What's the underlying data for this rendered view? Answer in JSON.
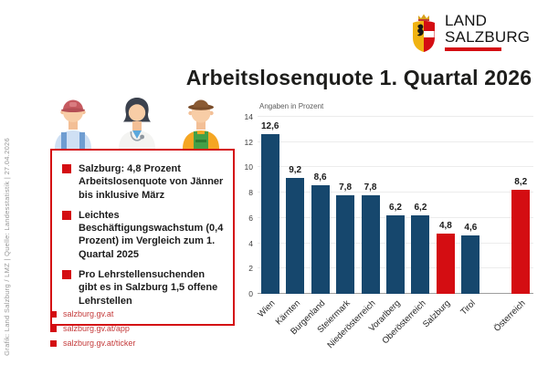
{
  "logo": {
    "org": "Land Salzburg",
    "line1": "LAND",
    "line2": "SALZBURG"
  },
  "title": "Arbeitslosenquote 1. Quartal 2026",
  "credit": "Grafik: Land Salzburg / LMZ | Quelle: Landesstatistik | 27.04.2026",
  "illustrations": [
    "construction-worker",
    "doctor",
    "farmer"
  ],
  "info_box": {
    "items": [
      "Salzburg: 4,8 Prozent Arbeitslosenquote von Jänner bis inklusive März",
      "Leichtes Beschäftigungswachs­tum (0,4 Prozent) im Vergleich zum 1. Quartal 2025",
      "Pro Lehrstellensuchenden gibt es in Salzburg 1,5 offene Lehr­stellen"
    ]
  },
  "links": [
    "salzburg.gv.at",
    "salzburg.gv.at/app",
    "salzburg.gv.at/ticker"
  ],
  "colors": {
    "red": "#d40d12",
    "bar_blue": "#16476d"
  },
  "chart_data": {
    "type": "bar",
    "subtitle": "Angaben in Prozent",
    "categories": [
      "Wien",
      "Kärnten",
      "Burgenland",
      "Steiermark",
      "Niederösterreich",
      "Vorarlberg",
      "Oberösterreich",
      "Salzburg",
      "Tirol",
      "Österreich"
    ],
    "values": [
      12.6,
      9.2,
      8.6,
      7.8,
      7.8,
      6.2,
      6.2,
      4.8,
      4.6,
      8.2
    ],
    "highlight": [
      false,
      false,
      false,
      false,
      false,
      false,
      false,
      true,
      false,
      true
    ],
    "gap_before_index": 9,
    "ylim": [
      0,
      14
    ],
    "yticks": [
      0,
      2,
      4,
      6,
      8,
      10,
      12,
      14
    ],
    "colors": {
      "bar": "#16476d",
      "highlight": "#d40d12"
    },
    "grid": true,
    "legend_position": "none",
    "xlabel": "",
    "ylabel": "Angaben in Prozent"
  }
}
